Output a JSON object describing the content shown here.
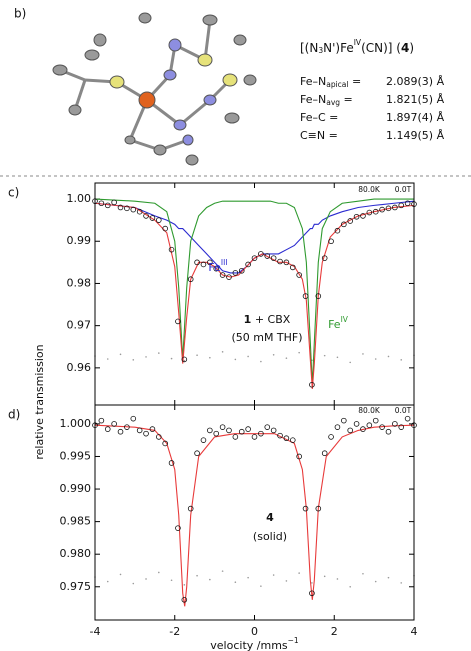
{
  "panel_b": "b)",
  "formula": {
    "prefix": "[(N",
    "sub": "3",
    "mid": "N')Fe",
    "sup": "IV",
    "suffix": "(CN)] (",
    "compound": "4",
    "end": ")"
  },
  "bonds": [
    {
      "label": "Fe–N",
      "sub": "apical",
      "eq": " =",
      "value": "2.089(3) Å"
    },
    {
      "label": "Fe–N",
      "sub": "avg",
      "eq": " =",
      "value": "1.821(5) Å"
    },
    {
      "label": "Fe–C =",
      "value": "1.897(4) Å"
    },
    {
      "label": "C≡N =",
      "value": "1.149(5) Å"
    }
  ],
  "ylabel": "relative transmission",
  "chart_data": [
    {
      "type": "scatter",
      "panel": "c)",
      "temperature": "80.0K",
      "field": "0.0T",
      "labels": [
        {
          "text": "Fe",
          "sup": "III",
          "color": "#2b2bd0"
        },
        {
          "text": "Fe",
          "sup": "IV",
          "color": "#2f9a2f"
        }
      ],
      "sample": [
        {
          "bold": "1",
          "text": " + CBX"
        },
        {
          "text": "(50 mM THF)"
        }
      ],
      "xlim": [
        -4,
        4
      ],
      "xticks": [
        -4,
        -2,
        0,
        2,
        4
      ],
      "ylim": [
        0.9512,
        1.0038
      ],
      "yticks": [
        {
          "value": 1.0,
          "label": "1.00"
        },
        {
          "value": 0.99,
          "label": "0.99"
        },
        {
          "value": 0.98,
          "label": "0.98"
        },
        {
          "value": 0.97,
          "label": "0.97"
        },
        {
          "value": 0.96,
          "label": "0.96"
        }
      ],
      "series": [
        {
          "kind": "dots",
          "color": "#9a9a9a",
          "x": [
            -4,
            -3.68,
            -3.36,
            -3.04,
            -2.72,
            -2.4,
            -2.08,
            -1.76,
            -1.44,
            -1.12,
            -0.8,
            -0.48,
            -0.16,
            0.16,
            0.48,
            0.8,
            1.12,
            1.44,
            1.76,
            2.08,
            2.4,
            2.72,
            3.04,
            3.36,
            3.68,
            4
          ],
          "values": [
            0.9628,
            0.9621,
            0.9632,
            0.9619,
            0.9626,
            0.9635,
            0.9622,
            0.9617,
            0.963,
            0.9624,
            0.9638,
            0.962,
            0.9627,
            0.9615,
            0.9631,
            0.9623,
            0.9636,
            0.9618,
            0.9629,
            0.9625,
            0.9613,
            0.9633,
            0.9621,
            0.9627,
            0.9619,
            0.963
          ]
        },
        {
          "kind": "line",
          "color": "#2b2bd0",
          "x": [
            -4,
            -3,
            -2.5,
            -2.2,
            -2.0,
            -1.9,
            -1.8,
            -1.7,
            -1.6,
            -1.4,
            -1.2,
            -1.0,
            -0.8,
            -0.6,
            -0.4,
            -0.2,
            0,
            0.2,
            0.4,
            0.6,
            0.8,
            1.0,
            1.2,
            1.3,
            1.4,
            1.45,
            1.5,
            1.6,
            1.7,
            1.9,
            2.2,
            2.6,
            3,
            3.5,
            4
          ],
          "values": [
            0.999,
            0.998,
            0.996,
            0.995,
            0.994,
            0.993,
            0.993,
            0.992,
            0.991,
            0.989,
            0.987,
            0.985,
            0.983,
            0.9825,
            0.9825,
            0.984,
            0.986,
            0.987,
            0.987,
            0.987,
            0.988,
            0.989,
            0.991,
            0.992,
            0.993,
            0.993,
            0.994,
            0.994,
            0.995,
            0.996,
            0.997,
            0.998,
            0.9985,
            0.999,
            0.9995
          ]
        },
        {
          "kind": "line",
          "color": "#2f9a2f",
          "x": [
            -4,
            -3,
            -2.5,
            -2.2,
            -2.0,
            -1.9,
            -1.8,
            -1.7,
            -1.6,
            -1.4,
            -1.2,
            -1.0,
            -0.8,
            -0.6,
            -0.4,
            -0.2,
            0,
            0.2,
            0.4,
            0.6,
            0.8,
            1.0,
            1.2,
            1.3,
            1.4,
            1.45,
            1.5,
            1.6,
            1.7,
            1.9,
            2.2,
            2.6,
            3,
            3.5,
            4
          ],
          "values": [
            1.0,
            0.9995,
            0.999,
            0.997,
            0.99,
            0.979,
            0.962,
            0.979,
            0.99,
            0.996,
            0.998,
            0.999,
            0.9995,
            0.9995,
            0.9995,
            0.9995,
            0.9995,
            0.9995,
            0.9995,
            0.999,
            0.999,
            0.998,
            0.993,
            0.985,
            0.966,
            0.956,
            0.966,
            0.985,
            0.993,
            0.997,
            0.999,
            0.9995,
            1.0,
            1.0,
            1.0
          ]
        },
        {
          "kind": "line",
          "color": "#e83a3a",
          "x": [
            -4,
            -3,
            -2.5,
            -2.2,
            -2.0,
            -1.9,
            -1.8,
            -1.7,
            -1.6,
            -1.4,
            -1.2,
            -1.0,
            -0.8,
            -0.6,
            -0.4,
            -0.2,
            0,
            0.2,
            0.4,
            0.6,
            0.8,
            1.0,
            1.2,
            1.3,
            1.4,
            1.45,
            1.5,
            1.6,
            1.7,
            1.9,
            2.2,
            2.6,
            3,
            3.5,
            4
          ],
          "values": [
            0.999,
            0.998,
            0.995,
            0.992,
            0.984,
            0.973,
            0.961,
            0.972,
            0.981,
            0.985,
            0.985,
            0.984,
            0.982,
            0.9815,
            0.982,
            0.984,
            0.986,
            0.987,
            0.986,
            0.985,
            0.985,
            0.984,
            0.981,
            0.976,
            0.962,
            0.955,
            0.961,
            0.977,
            0.985,
            0.991,
            0.994,
            0.996,
            0.997,
            0.998,
            0.9985
          ]
        },
        {
          "kind": "markers",
          "color": "#111111",
          "x": [
            -4.0,
            -3.84,
            -3.68,
            -3.52,
            -3.36,
            -3.2,
            -3.04,
            -2.88,
            -2.72,
            -2.56,
            -2.4,
            -2.24,
            -2.08,
            -1.92,
            -1.76,
            -1.6,
            -1.44,
            -1.28,
            -1.12,
            -0.96,
            -0.8,
            -0.64,
            -0.48,
            -0.32,
            -0.16,
            0,
            0.16,
            0.32,
            0.48,
            0.64,
            0.8,
            0.96,
            1.12,
            1.28,
            1.44,
            1.6,
            1.76,
            1.92,
            2.08,
            2.24,
            2.4,
            2.56,
            2.72,
            2.88,
            3.04,
            3.2,
            3.36,
            3.52,
            3.68,
            3.84,
            4.0
          ],
          "values": [
            0.9995,
            0.999,
            0.9985,
            0.9992,
            0.998,
            0.9978,
            0.9975,
            0.997,
            0.996,
            0.9955,
            0.995,
            0.993,
            0.988,
            0.971,
            0.962,
            0.981,
            0.985,
            0.9845,
            0.985,
            0.9835,
            0.982,
            0.9815,
            0.9825,
            0.983,
            0.9845,
            0.986,
            0.987,
            0.9865,
            0.986,
            0.9852,
            0.985,
            0.9838,
            0.982,
            0.977,
            0.956,
            0.977,
            0.986,
            0.99,
            0.9925,
            0.994,
            0.9948,
            0.9958,
            0.996,
            0.9968,
            0.997,
            0.9975,
            0.9978,
            0.998,
            0.9985,
            0.999,
            0.9988
          ]
        }
      ]
    },
    {
      "type": "scatter",
      "panel": "d)",
      "temperature": "80.0K",
      "field": "0.0T",
      "sample": [
        {
          "bold": "4"
        },
        {
          "text": "(solid)"
        }
      ],
      "xlabel": {
        "text": "velocity /mms",
        "sup": "−1"
      },
      "xlim": [
        -4,
        4
      ],
      "xticks": [
        -4,
        -2,
        0,
        2,
        4
      ],
      "ylim": [
        0.9699,
        1.0029
      ],
      "yticks": [
        {
          "value": 1.0,
          "label": "1.000"
        },
        {
          "value": 0.995,
          "label": "0.995"
        },
        {
          "value": 0.99,
          "label": "0.990"
        },
        {
          "value": 0.985,
          "label": "0.985"
        },
        {
          "value": 0.98,
          "label": "0.980"
        },
        {
          "value": 0.975,
          "label": "0.975"
        }
      ],
      "series": [
        {
          "kind": "dots",
          "color": "#9a9a9a",
          "x": [
            -4,
            -3.68,
            -3.36,
            -3.04,
            -2.72,
            -2.4,
            -2.08,
            -1.76,
            -1.44,
            -1.12,
            -0.8,
            -0.48,
            -0.16,
            0.16,
            0.48,
            0.8,
            1.12,
            1.44,
            1.76,
            2.08,
            2.4,
            2.72,
            3.04,
            3.36,
            3.68,
            4
          ],
          "values": [
            0.9765,
            0.9758,
            0.9769,
            0.9755,
            0.9762,
            0.9772,
            0.976,
            0.9753,
            0.9767,
            0.9761,
            0.9774,
            0.9757,
            0.9764,
            0.9751,
            0.9768,
            0.9759,
            0.9771,
            0.9756,
            0.9766,
            0.9762,
            0.975,
            0.977,
            0.9758,
            0.9764,
            0.9756,
            0.9767
          ]
        },
        {
          "kind": "line",
          "color": "#e83a3a",
          "x": [
            -4,
            -3,
            -2.5,
            -2.2,
            -2.0,
            -1.9,
            -1.8,
            -1.75,
            -1.7,
            -1.6,
            -1.4,
            -1.0,
            -0.5,
            0,
            0.5,
            1.0,
            1.2,
            1.3,
            1.4,
            1.45,
            1.5,
            1.6,
            1.8,
            2.2,
            2.6,
            3,
            3.5,
            4
          ],
          "values": [
            0.9998,
            0.9995,
            0.999,
            0.997,
            0.993,
            0.986,
            0.974,
            0.972,
            0.975,
            0.986,
            0.995,
            0.998,
            0.9985,
            0.9985,
            0.9985,
            0.997,
            0.993,
            0.987,
            0.976,
            0.973,
            0.976,
            0.987,
            0.995,
            0.998,
            0.999,
            0.9995,
            0.9997,
            0.9998
          ]
        },
        {
          "kind": "markers",
          "color": "#111111",
          "x": [
            -4.0,
            -3.84,
            -3.68,
            -3.52,
            -3.36,
            -3.2,
            -3.04,
            -2.88,
            -2.72,
            -2.56,
            -2.4,
            -2.24,
            -2.08,
            -1.92,
            -1.76,
            -1.6,
            -1.44,
            -1.28,
            -1.12,
            -0.96,
            -0.8,
            -0.64,
            -0.48,
            -0.32,
            -0.16,
            0,
            0.16,
            0.32,
            0.48,
            0.64,
            0.8,
            0.96,
            1.12,
            1.28,
            1.44,
            1.6,
            1.76,
            1.92,
            2.08,
            2.24,
            2.4,
            2.56,
            2.72,
            2.88,
            3.04,
            3.2,
            3.36,
            3.52,
            3.68,
            3.84,
            4.0
          ],
          "values": [
            0.9998,
            1.0005,
            0.9992,
            1.0,
            0.9988,
            0.9995,
            1.0008,
            0.999,
            0.9985,
            0.9992,
            0.998,
            0.997,
            0.994,
            0.984,
            0.973,
            0.987,
            0.9955,
            0.9975,
            0.999,
            0.9985,
            0.9995,
            0.999,
            0.998,
            0.9988,
            0.9992,
            0.998,
            0.9985,
            0.9995,
            0.999,
            0.9982,
            0.9978,
            0.9975,
            0.995,
            0.987,
            0.974,
            0.987,
            0.9955,
            0.998,
            0.9995,
            1.0005,
            0.999,
            1.0,
            0.9992,
            0.9998,
            1.0005,
            0.9995,
            0.9988,
            1.0,
            0.9995,
            1.0008,
            0.9998
          ]
        }
      ]
    }
  ]
}
